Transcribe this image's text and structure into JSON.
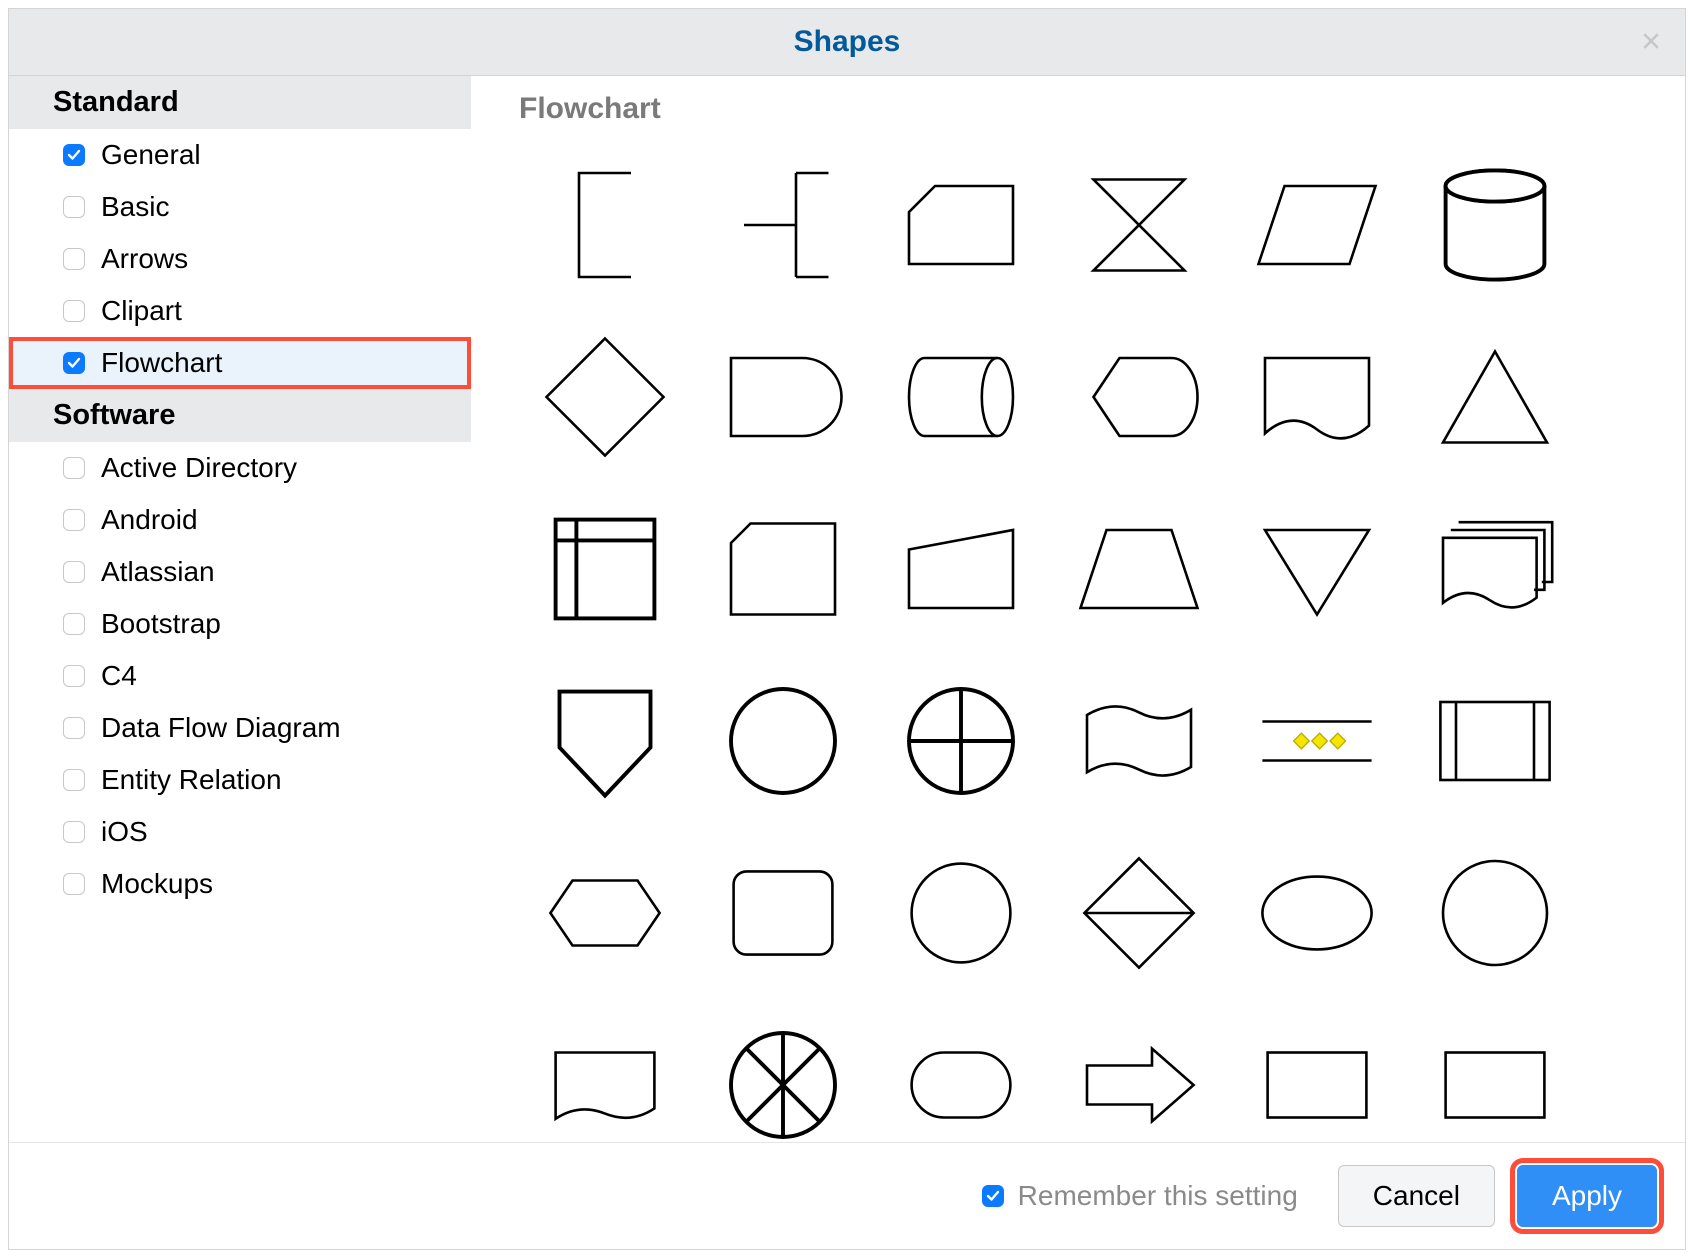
{
  "dialog": {
    "title": "Shapes",
    "close_glyph": "×"
  },
  "sidebar": {
    "sections": [
      {
        "header": "Standard",
        "items": [
          {
            "label": "General",
            "checked": true,
            "highlighted": false
          },
          {
            "label": "Basic",
            "checked": false,
            "highlighted": false
          },
          {
            "label": "Arrows",
            "checked": false,
            "highlighted": false
          },
          {
            "label": "Clipart",
            "checked": false,
            "highlighted": false
          },
          {
            "label": "Flowchart",
            "checked": true,
            "highlighted": true
          }
        ]
      },
      {
        "header": "Software",
        "items": [
          {
            "label": "Active Directory",
            "checked": false,
            "highlighted": false
          },
          {
            "label": "Android",
            "checked": false,
            "highlighted": false
          },
          {
            "label": "Atlassian",
            "checked": false,
            "highlighted": false
          },
          {
            "label": "Bootstrap",
            "checked": false,
            "highlighted": false
          },
          {
            "label": "C4",
            "checked": false,
            "highlighted": false
          },
          {
            "label": "Data Flow Diagram",
            "checked": false,
            "highlighted": false
          },
          {
            "label": "Entity Relation",
            "checked": false,
            "highlighted": false
          },
          {
            "label": "iOS",
            "checked": false,
            "highlighted": false
          },
          {
            "label": "Mockups",
            "checked": false,
            "highlighted": false
          }
        ]
      }
    ]
  },
  "preview": {
    "title": "Flowchart",
    "shapes": [
      "annotation-open",
      "annotation-fork",
      "card",
      "collate",
      "parallelogram",
      "database",
      "decision-diamond",
      "delay",
      "direct-data",
      "display",
      "document",
      "triangle-up",
      "internal-storage",
      "card-snip",
      "manual-input",
      "trapezoid",
      "triangle-down",
      "multi-document",
      "offpage-down",
      "circle-connector",
      "circle-cross",
      "wave-flag",
      "dotted-diamonds",
      "predefined-process",
      "hexagon",
      "rounded-rect",
      "circle-plain",
      "sort-diamond",
      "ellipse",
      "circle-large",
      "rounded-rect-2",
      "circle-x",
      "rounded-rect-3",
      "arrow-right",
      "rect-plain",
      "rect-plain-2"
    ],
    "dot_color": "#f4e600"
  },
  "footer": {
    "remember_label": "Remember this setting",
    "remember_checked": true,
    "cancel_label": "Cancel",
    "apply_label": "Apply",
    "apply_highlighted": true
  },
  "colors": {
    "title": "#025a9a",
    "highlight": "#ff4d3a",
    "primary": "#2f8ff7",
    "checkbox": "#0a7aff",
    "section_bg": "#e8e9ea",
    "muted_text": "#8a8a8a"
  }
}
